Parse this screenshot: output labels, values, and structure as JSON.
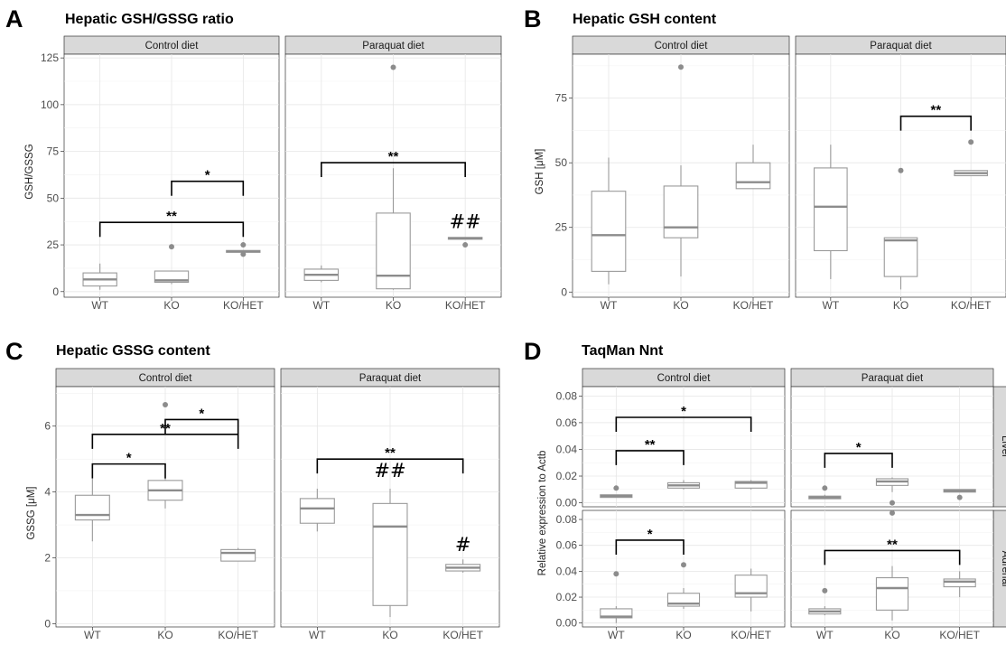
{
  "chart_data": [
    {
      "type": "boxplot",
      "letter": "A",
      "title": "Hepatic GSH/GSSG ratio",
      "ylabel": "GSH/GSSG",
      "categories": [
        "WT",
        "KO",
        "KO/HET"
      ],
      "facets": [
        "Control diet",
        "Paraquat diet"
      ],
      "ylim": [
        -3,
        127
      ],
      "yticks": [
        0,
        25,
        50,
        75,
        100,
        125
      ],
      "grid": true,
      "panels": [
        {
          "facet": "Control diet",
          "boxes": [
            {
              "category": "WT",
              "min": 1,
              "q1": 3,
              "median": 6.5,
              "q3": 10,
              "max": 15,
              "outliers": []
            },
            {
              "category": "KO",
              "min": 4,
              "q1": 5,
              "median": 6,
              "q3": 11,
              "max": 11,
              "outliers": [
                24
              ]
            },
            {
              "category": "KO/HET",
              "min": 21,
              "q1": 21,
              "median": 21.5,
              "q3": 22,
              "max": 22,
              "outliers": [
                25,
                20
              ]
            }
          ],
          "brackets": [
            {
              "from": "KO",
              "to": "KO/HET",
              "y": 59,
              "label": "*"
            },
            {
              "from": "WT",
              "to": "KO/HET",
              "y": 37,
              "label": "**"
            }
          ],
          "marks": []
        },
        {
          "facet": "Paraquat diet",
          "boxes": [
            {
              "category": "WT",
              "min": 5,
              "q1": 6,
              "median": 9,
              "q3": 12,
              "max": 14,
              "outliers": []
            },
            {
              "category": "KO",
              "min": 1,
              "q1": 1.5,
              "median": 8.5,
              "q3": 42,
              "max": 66,
              "outliers": [
                120
              ]
            },
            {
              "category": "KO/HET",
              "min": 28,
              "q1": 28,
              "median": 28.5,
              "q3": 29,
              "max": 29,
              "outliers": [
                25
              ]
            }
          ],
          "brackets": [
            {
              "from": "WT",
              "to": "KO/HET",
              "y": 69,
              "label": "**"
            }
          ],
          "marks": [
            {
              "category": "KO/HET",
              "y": 34,
              "label": "##"
            }
          ]
        }
      ]
    },
    {
      "type": "boxplot",
      "letter": "B",
      "title": "Hepatic GSH content",
      "ylabel": "GSH [μM]",
      "categories": [
        "WT",
        "KO",
        "KO/HET"
      ],
      "facets": [
        "Control diet",
        "Paraquat diet"
      ],
      "ylim": [
        -2,
        92
      ],
      "yticks": [
        0,
        25,
        50,
        75
      ],
      "grid": true,
      "panels": [
        {
          "facet": "Control diet",
          "boxes": [
            {
              "category": "WT",
              "min": 3,
              "q1": 8,
              "median": 22,
              "q3": 39,
              "max": 52,
              "outliers": []
            },
            {
              "category": "KO",
              "min": 6,
              "q1": 21,
              "median": 25,
              "q3": 41,
              "max": 49,
              "outliers": [
                87
              ]
            },
            {
              "category": "KO/HET",
              "min": 40,
              "q1": 40,
              "median": 42.5,
              "q3": 50,
              "max": 57,
              "outliers": []
            }
          ],
          "brackets": [],
          "marks": []
        },
        {
          "facet": "Paraquat diet",
          "boxes": [
            {
              "category": "WT",
              "min": 5,
              "q1": 16,
              "median": 33,
              "q3": 48,
              "max": 57,
              "outliers": []
            },
            {
              "category": "KO",
              "min": 1,
              "q1": 6,
              "median": 20,
              "q3": 21,
              "max": 21,
              "outliers": [
                47
              ]
            },
            {
              "category": "KO/HET",
              "min": 45,
              "q1": 45,
              "median": 46,
              "q3": 47,
              "max": 47,
              "outliers": [
                58
              ]
            }
          ],
          "brackets": [
            {
              "from": "KO",
              "to": "KO/HET",
              "y": 68,
              "label": "**"
            }
          ],
          "marks": []
        }
      ]
    },
    {
      "type": "boxplot",
      "letter": "C",
      "title": "Hepatic GSSG content",
      "ylabel": "GSSG [μM]",
      "categories": [
        "WT",
        "KO",
        "KO/HET"
      ],
      "facets": [
        "Control diet",
        "Paraquat diet"
      ],
      "ylim": [
        -0.1,
        7.2
      ],
      "yticks": [
        0,
        2,
        4,
        6
      ],
      "grid": true,
      "panels": [
        {
          "facet": "Control diet",
          "boxes": [
            {
              "category": "WT",
              "min": 2.5,
              "q1": 3.15,
              "median": 3.3,
              "q3": 3.9,
              "max": 4.4,
              "outliers": []
            },
            {
              "category": "KO",
              "min": 3.5,
              "q1": 3.75,
              "median": 4.05,
              "q3": 4.35,
              "max": 4.45,
              "outliers": [
                6.65
              ]
            },
            {
              "category": "KO/HET",
              "min": 1.9,
              "q1": 1.9,
              "median": 2.15,
              "q3": 2.25,
              "max": 2.3,
              "outliers": []
            }
          ],
          "brackets": [
            {
              "from": "KO",
              "to": "KO/HET",
              "y": 6.2,
              "label": "*"
            },
            {
              "from": "WT",
              "to": "KO/HET",
              "y": 5.75,
              "label": "**"
            },
            {
              "from": "WT",
              "to": "KO",
              "y": 4.85,
              "label": "*"
            }
          ],
          "marks": []
        },
        {
          "facet": "Paraquat diet",
          "boxes": [
            {
              "category": "WT",
              "min": 2.8,
              "q1": 3.05,
              "median": 3.5,
              "q3": 3.8,
              "max": 4.1,
              "outliers": []
            },
            {
              "category": "KO",
              "min": 0.2,
              "q1": 0.55,
              "median": 2.95,
              "q3": 3.65,
              "max": 4.1,
              "outliers": []
            },
            {
              "category": "KO/HET",
              "min": 1.55,
              "q1": 1.6,
              "median": 1.7,
              "q3": 1.8,
              "max": 1.95,
              "outliers": []
            }
          ],
          "brackets": [
            {
              "from": "WT",
              "to": "KO/HET",
              "y": 5.0,
              "label": "**"
            }
          ],
          "marks": [
            {
              "category": "KO",
              "y": 4.45,
              "label": "##"
            },
            {
              "category": "KO/HET",
              "y": 2.2,
              "label": "#"
            }
          ]
        }
      ]
    },
    {
      "type": "boxplot",
      "letter": "D",
      "title": "TaqMan Nnt",
      "ylabel": "Relative expression to Actb",
      "categories": [
        "WT",
        "KO",
        "KO/HET"
      ],
      "facets": [
        "Control diet",
        "Paraquat diet"
      ],
      "rows": [
        "Liver",
        "Adrenal"
      ],
      "ylim": [
        -0.003,
        0.087
      ],
      "yticks": [
        0.0,
        0.02,
        0.04,
        0.06,
        0.08
      ],
      "ytick_labels": [
        "0.00",
        "0.02",
        "0.04",
        "0.06",
        "0.08"
      ],
      "grid": true,
      "panels": [
        {
          "facet": "Control diet",
          "row": "Liver",
          "boxes": [
            {
              "category": "WT",
              "min": 0.004,
              "q1": 0.004,
              "median": 0.005,
              "q3": 0.006,
              "max": 0.006,
              "outliers": [
                0.011
              ]
            },
            {
              "category": "KO",
              "min": 0.01,
              "q1": 0.011,
              "median": 0.013,
              "q3": 0.015,
              "max": 0.017,
              "outliers": []
            },
            {
              "category": "KO/HET",
              "min": 0.01,
              "q1": 0.011,
              "median": 0.015,
              "q3": 0.016,
              "max": 0.017,
              "outliers": []
            }
          ],
          "brackets": [
            {
              "from": "WT",
              "to": "KO/HET",
              "y": 0.064,
              "label": "*"
            },
            {
              "from": "WT",
              "to": "KO",
              "y": 0.039,
              "label": "**"
            }
          ],
          "marks": []
        },
        {
          "facet": "Paraquat diet",
          "row": "Liver",
          "boxes": [
            {
              "category": "WT",
              "min": 0.003,
              "q1": 0.003,
              "median": 0.004,
              "q3": 0.005,
              "max": 0.006,
              "outliers": [
                0.011
              ]
            },
            {
              "category": "KO",
              "min": 0.008,
              "q1": 0.013,
              "median": 0.016,
              "q3": 0.018,
              "max": 0.019,
              "outliers": [
                0.0
              ]
            },
            {
              "category": "KO/HET",
              "min": 0.008,
              "q1": 0.008,
              "median": 0.009,
              "q3": 0.01,
              "max": 0.01,
              "outliers": [
                0.004
              ]
            }
          ],
          "brackets": [
            {
              "from": "WT",
              "to": "KO",
              "y": 0.037,
              "label": "*"
            }
          ],
          "marks": []
        },
        {
          "facet": "Control diet",
          "row": "Adrenal",
          "boxes": [
            {
              "category": "WT",
              "min": 0.0,
              "q1": 0.004,
              "median": 0.005,
              "q3": 0.011,
              "max": 0.013,
              "outliers": [
                0.038
              ]
            },
            {
              "category": "KO",
              "min": 0.011,
              "q1": 0.013,
              "median": 0.015,
              "q3": 0.023,
              "max": 0.027,
              "outliers": [
                0.045
              ]
            },
            {
              "category": "KO/HET",
              "min": 0.009,
              "q1": 0.02,
              "median": 0.023,
              "q3": 0.037,
              "max": 0.042,
              "outliers": []
            }
          ],
          "brackets": [
            {
              "from": "WT",
              "to": "KO",
              "y": 0.064,
              "label": "*"
            }
          ],
          "marks": []
        },
        {
          "facet": "Paraquat diet",
          "row": "Adrenal",
          "boxes": [
            {
              "category": "WT",
              "min": 0.006,
              "q1": 0.007,
              "median": 0.009,
              "q3": 0.011,
              "max": 0.013,
              "outliers": [
                0.025
              ]
            },
            {
              "category": "KO",
              "min": 0.002,
              "q1": 0.01,
              "median": 0.027,
              "q3": 0.035,
              "max": 0.044,
              "outliers": [
                0.085
              ]
            },
            {
              "category": "KO/HET",
              "min": 0.02,
              "q1": 0.028,
              "median": 0.032,
              "q3": 0.034,
              "max": 0.04,
              "outliers": []
            }
          ],
          "brackets": [
            {
              "from": "WT",
              "to": "KO/HET",
              "y": 0.056,
              "label": "**"
            }
          ],
          "marks": []
        }
      ]
    }
  ]
}
